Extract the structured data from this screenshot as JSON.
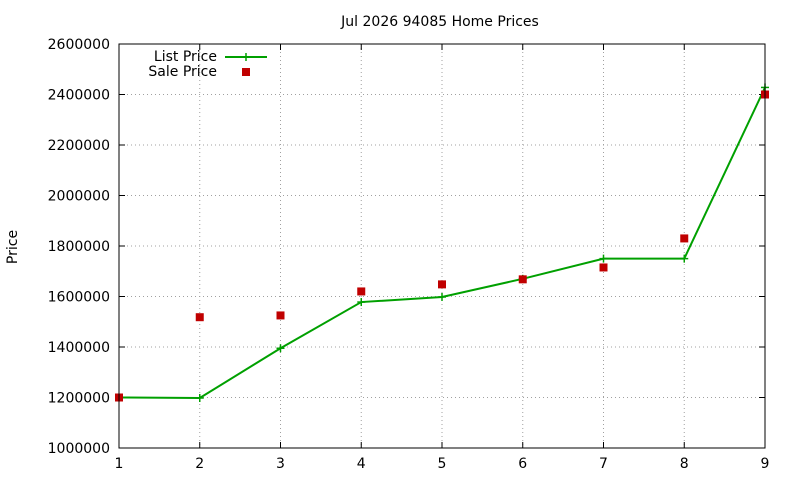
{
  "chart_data": {
    "type": "line",
    "title": "Jul 2026 94085 Home Prices",
    "xlabel": "",
    "ylabel": "Price",
    "x": [
      1,
      2,
      3,
      4,
      5,
      6,
      7,
      8,
      9
    ],
    "xlim": [
      1,
      9
    ],
    "ylim": [
      1000000,
      2600000
    ],
    "x_ticks": [
      "1",
      "2",
      "3",
      "4",
      "5",
      "6",
      "7",
      "8",
      "9"
    ],
    "y_ticks": [
      "1000000",
      "1200000",
      "1400000",
      "1600000",
      "1800000",
      "2000000",
      "2200000",
      "2400000",
      "2600000"
    ],
    "grid": true,
    "legend_position": "top-left",
    "series": [
      {
        "name": "List Price",
        "style": "line-with-plus-markers",
        "color": "#00a000",
        "values": [
          1200000,
          1198000,
          1395000,
          1578000,
          1598000,
          1670000,
          1750000,
          1750000,
          2428000
        ]
      },
      {
        "name": "Sale Price",
        "style": "square-markers",
        "color": "#c00000",
        "values": [
          1200000,
          1518000,
          1525000,
          1620000,
          1648000,
          1668000,
          1715000,
          1830000,
          2400000
        ]
      }
    ]
  }
}
